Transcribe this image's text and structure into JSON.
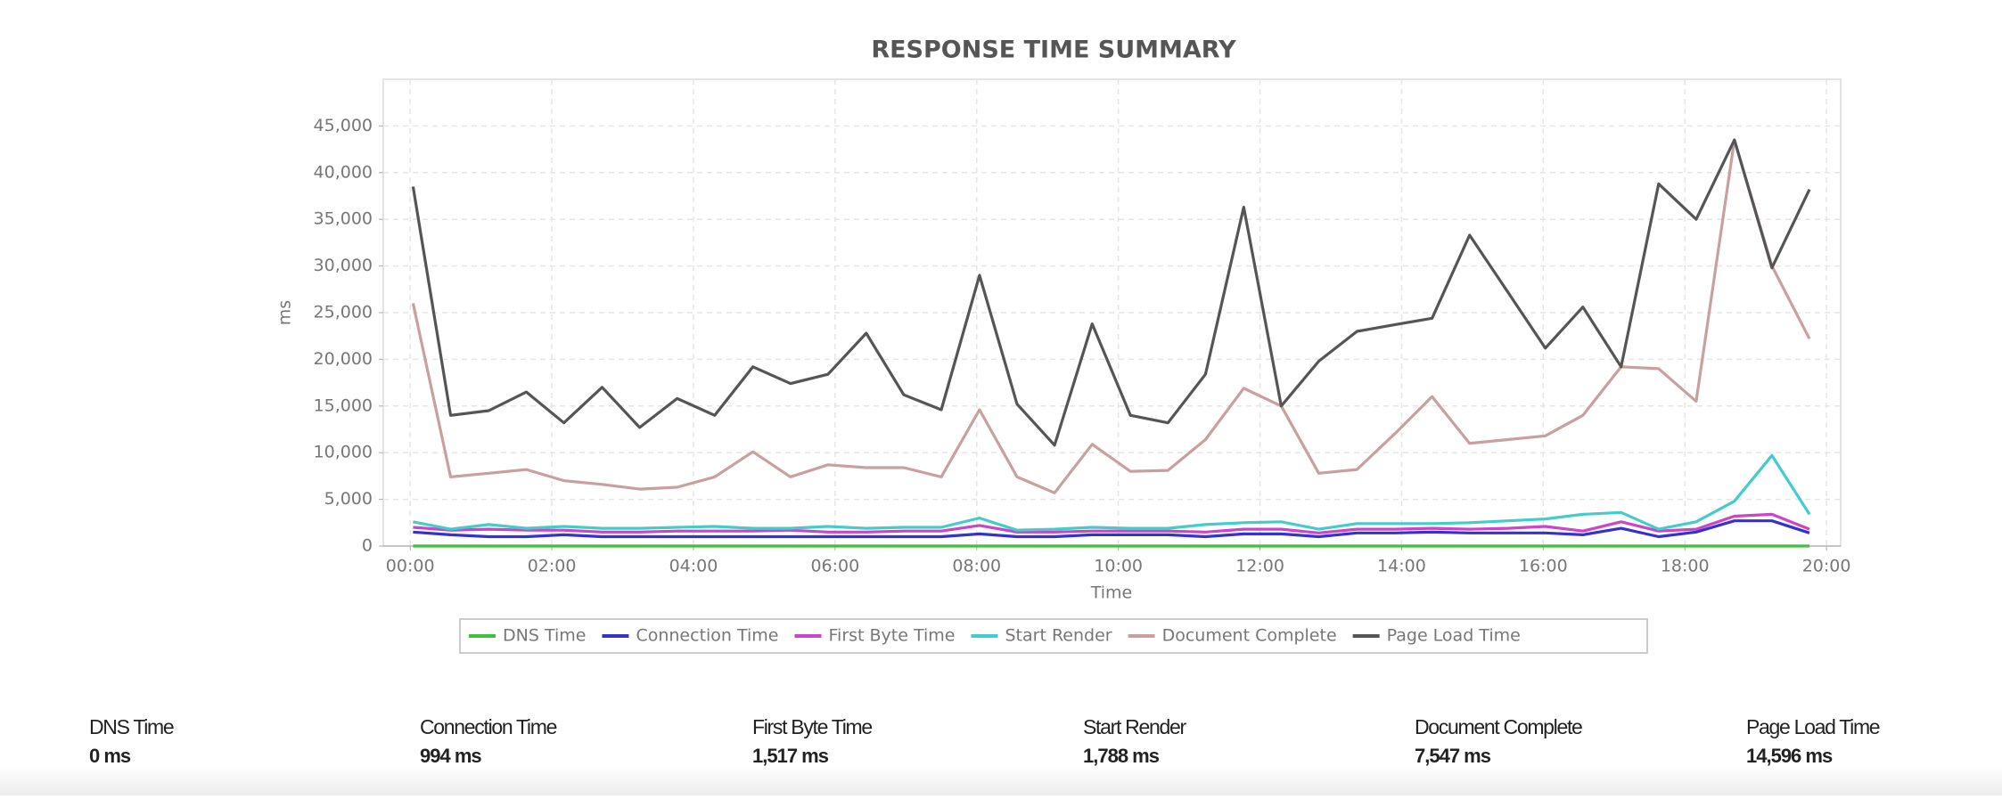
{
  "chart_data": {
    "type": "line",
    "title": "RESPONSE TIME SUMMARY",
    "x_label": "Time",
    "y_label": "ms",
    "x": [
      0.04,
      0.57,
      1.11,
      1.64,
      2.17,
      2.71,
      3.24,
      3.77,
      4.3,
      4.84,
      5.37,
      5.9,
      6.44,
      6.97,
      7.5,
      8.04,
      8.57,
      9.1,
      9.63,
      10.17,
      10.7,
      11.23,
      11.77,
      12.3,
      12.83,
      13.37,
      13.9,
      14.43,
      14.96,
      15.5,
      16.03,
      16.56,
      17.1,
      17.63,
      18.16,
      18.7,
      19.23,
      19.76
    ],
    "xlim": [
      -0.38,
      20.2
    ],
    "xticks": [
      {
        "value": 0,
        "label": "00:00"
      },
      {
        "value": 2,
        "label": "02:00"
      },
      {
        "value": 4,
        "label": "04:00"
      },
      {
        "value": 6,
        "label": "06:00"
      },
      {
        "value": 8,
        "label": "08:00"
      },
      {
        "value": 10,
        "label": "10:00"
      },
      {
        "value": 12,
        "label": "12:00"
      },
      {
        "value": 14,
        "label": "14:00"
      },
      {
        "value": 16,
        "label": "16:00"
      },
      {
        "value": 18,
        "label": "18:00"
      },
      {
        "value": 20,
        "label": "20:00"
      }
    ],
    "ylim": [
      0,
      50000
    ],
    "yticks": [
      0,
      {
        "value": 5000,
        "label": "5,000"
      },
      {
        "value": 10000,
        "label": "10,000"
      },
      {
        "value": 15000,
        "label": "15,000"
      },
      {
        "value": 20000,
        "label": "20,000"
      },
      {
        "value": 25000,
        "label": "25,000"
      },
      {
        "value": 30000,
        "label": "30,000"
      },
      {
        "value": 35000,
        "label": "35,000"
      },
      {
        "value": 40000,
        "label": "40,000"
      },
      {
        "value": 45000,
        "label": "45,000"
      }
    ],
    "grid": true,
    "legend": "bottom",
    "series": [
      {
        "name": "DNS Time",
        "color": "#3cc23c",
        "values": [
          0,
          0,
          0,
          0,
          0,
          0,
          0,
          0,
          0,
          0,
          0,
          0,
          0,
          0,
          0,
          0,
          0,
          0,
          0,
          0,
          0,
          0,
          0,
          0,
          0,
          0,
          0,
          0,
          0,
          0,
          0,
          0,
          0,
          0,
          0,
          0,
          0,
          0
        ]
      },
      {
        "name": "Connection Time",
        "color": "#3333cc",
        "values": [
          1500,
          1200,
          1000,
          1000,
          1200,
          1000,
          1000,
          1000,
          1000,
          1000,
          1000,
          1000,
          1000,
          1000,
          1000,
          1300,
          1000,
          1000,
          1200,
          1200,
          1200,
          1000,
          1300,
          1300,
          1000,
          1400,
          1400,
          1500,
          1400,
          1400,
          1400,
          1200,
          1900,
          1000,
          1500,
          2700,
          2700,
          1400
        ]
      },
      {
        "name": "First Byte Time",
        "color": "#cc44cc",
        "values": [
          2000,
          1700,
          1800,
          1700,
          1700,
          1500,
          1500,
          1600,
          1600,
          1600,
          1700,
          1500,
          1500,
          1600,
          1600,
          2200,
          1500,
          1500,
          1600,
          1600,
          1600,
          1500,
          1800,
          1800,
          1400,
          1800,
          1800,
          1900,
          1800,
          1900,
          2100,
          1600,
          2600,
          1600,
          1800,
          3200,
          3400,
          1800
        ]
      },
      {
        "name": "Start Render",
        "color": "#44cccc",
        "values": [
          2600,
          1800,
          2300,
          1900,
          2100,
          1900,
          1900,
          2000,
          2100,
          1900,
          1900,
          2100,
          1900,
          2000,
          2000,
          3000,
          1700,
          1800,
          2000,
          1900,
          1900,
          2300,
          2500,
          2600,
          1800,
          2400,
          2400,
          2400,
          2500,
          2700,
          2900,
          3400,
          3600,
          1800,
          2600,
          4800,
          9700,
          3400
        ]
      },
      {
        "name": "Document Complete",
        "color": "#c9a0a0",
        "values": [
          26000,
          7400,
          7800,
          8200,
          7000,
          6600,
          6100,
          6300,
          7400,
          10100,
          7400,
          8700,
          8400,
          8400,
          7400,
          14600,
          7400,
          5700,
          10900,
          8000,
          8100,
          11400,
          16900,
          15000,
          7800,
          8200,
          12000,
          16000,
          11000,
          11400,
          11800,
          14000,
          19200,
          19000,
          15500,
          43500,
          30000,
          22200
        ]
      },
      {
        "name": "Page Load Time",
        "color": "#555555",
        "values": [
          38500,
          14000,
          14500,
          16500,
          13200,
          17000,
          12700,
          15800,
          14000,
          19200,
          17400,
          18400,
          22800,
          16200,
          14600,
          29000,
          15200,
          10800,
          23800,
          14000,
          13200,
          18400,
          36300,
          15000,
          19800,
          23000,
          23700,
          24400,
          33300,
          27200,
          21200,
          25600,
          19200,
          38800,
          35000,
          43500,
          29800,
          38200
        ]
      }
    ]
  },
  "summary": [
    {
      "label": "DNS Time",
      "value": "0 ms"
    },
    {
      "label": "Connection Time",
      "value": "994 ms"
    },
    {
      "label": "First Byte Time",
      "value": "1,517 ms"
    },
    {
      "label": "Start Render",
      "value": "1,788 ms"
    },
    {
      "label": "Document Complete",
      "value": "7,547 ms"
    },
    {
      "label": "Page Load Time",
      "value": "14,596 ms"
    }
  ]
}
